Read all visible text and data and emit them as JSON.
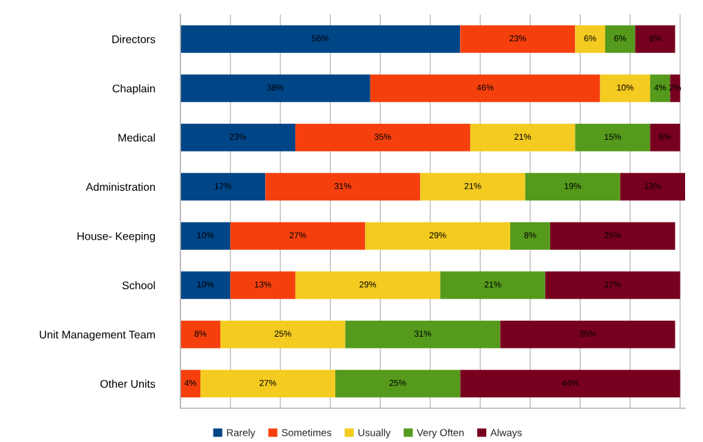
{
  "chart_data": {
    "type": "bar",
    "orientation": "horizontal",
    "stacked": true,
    "categories": [
      "Directors",
      "Chaplain",
      "Medical",
      "Administration",
      "House- Keeping",
      "School",
      "Unit Management Team",
      "Other Units"
    ],
    "series": [
      {
        "name": "Rarely",
        "color": "#004586",
        "values": [
          56,
          38,
          23,
          17,
          10,
          10,
          null,
          null
        ],
        "value_labels": [
          "56%",
          "38%",
          "23%",
          "17%",
          "10%",
          "10%",
          null,
          null
        ]
      },
      {
        "name": "Sometimes",
        "color": "#f5400e",
        "values": [
          23,
          46,
          35,
          31,
          27,
          13,
          8,
          4
        ],
        "value_labels": [
          "23%",
          "46%",
          "35%",
          "31%",
          "27%",
          "13%",
          "8%",
          "4%"
        ]
      },
      {
        "name": "Usually",
        "color": "#f4cb20",
        "values": [
          6,
          10,
          21,
          21,
          29,
          29,
          25,
          27
        ],
        "value_labels": [
          "6%",
          "10%",
          "21%",
          "21%",
          "29%",
          "29%",
          "25%",
          "27%"
        ]
      },
      {
        "name": "Very Often",
        "color": "#559a1c",
        "values": [
          6,
          4,
          15,
          19,
          8,
          21,
          31,
          25
        ],
        "value_labels": [
          "6%",
          "4%",
          "15%",
          "19%",
          "8%",
          "21%",
          "31%",
          "25%"
        ]
      },
      {
        "name": "Always",
        "color": "#78001f",
        "values": [
          8,
          2,
          6,
          13,
          25,
          27,
          35,
          44
        ],
        "value_labels": [
          "8%",
          "2%",
          "6%",
          "13%",
          "25%",
          "27%",
          "35%",
          "44%"
        ]
      }
    ],
    "xlim": [
      0,
      101
    ],
    "xticks": [
      {
        "value": 0,
        "label": null
      },
      {
        "value": 10,
        "label": null
      },
      {
        "value": 20,
        "label": null
      },
      {
        "value": 30,
        "label": null
      },
      {
        "value": 40,
        "label": null
      },
      {
        "value": 50,
        "label": null
      },
      {
        "value": 60,
        "label": null
      },
      {
        "value": 70,
        "label": null
      },
      {
        "value": 80,
        "label": null
      },
      {
        "value": 90,
        "label": null
      },
      {
        "value": 100,
        "label": null
      }
    ],
    "grid": "x",
    "legend": "bottom",
    "tick_labels": "y"
  }
}
